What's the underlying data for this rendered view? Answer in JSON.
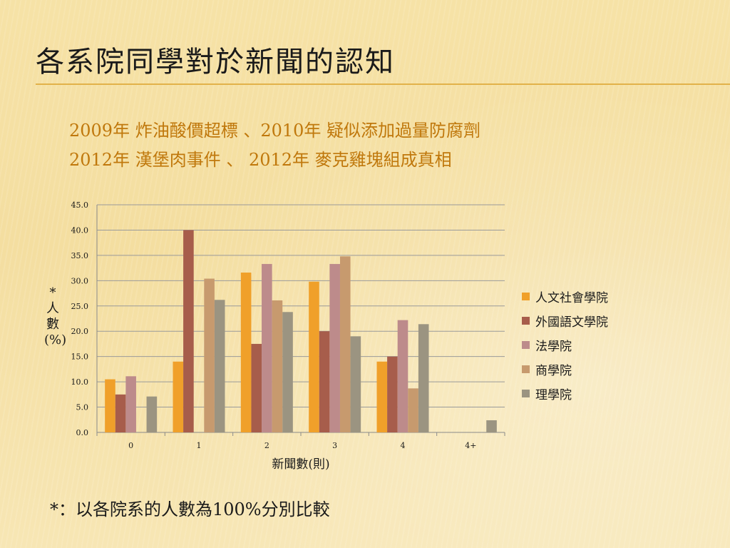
{
  "slide": {
    "title": "各系院同學對於新聞的認知",
    "subtitle_line1": "2009年 炸油酸價超標 、2010年 疑似添加過量防腐劑",
    "subtitle_line2": "2012年 漢堡肉事件  、 2012年 麥克雞塊組成真相",
    "footnote": "*：以各院系的人數為100%分別比較"
  },
  "chart_data": {
    "type": "bar",
    "xlabel": "新聞數(則)",
    "ylabel_chars": [
      "*",
      "人",
      "數",
      "(%)"
    ],
    "ylim": [
      0,
      45
    ],
    "yticks": [
      "0.0",
      "5.0",
      "10.0",
      "15.0",
      "20.0",
      "25.0",
      "30.0",
      "35.0",
      "40.0",
      "45.0"
    ],
    "grid": true,
    "legend_position": "right",
    "categories": [
      "0",
      "1",
      "2",
      "3",
      "4",
      "4+"
    ],
    "series": [
      {
        "name": "人文社會學院",
        "color": "#f0a02a",
        "values": [
          10.5,
          14.0,
          31.6,
          29.8,
          14.0,
          0
        ]
      },
      {
        "name": "外國語文學院",
        "color": "#a75d4b",
        "values": [
          7.5,
          40.0,
          17.5,
          20.0,
          15.0,
          0
        ]
      },
      {
        "name": "法學院",
        "color": "#bd8b8b",
        "values": [
          11.1,
          0,
          33.3,
          33.3,
          22.2,
          0
        ]
      },
      {
        "name": "商學院",
        "color": "#c79a6e",
        "values": [
          0,
          30.4,
          26.1,
          34.8,
          8.7,
          0
        ]
      },
      {
        "name": "理學院",
        "color": "#9b9481",
        "values": [
          7.1,
          26.2,
          23.8,
          19.0,
          21.4,
          2.4
        ]
      }
    ]
  }
}
